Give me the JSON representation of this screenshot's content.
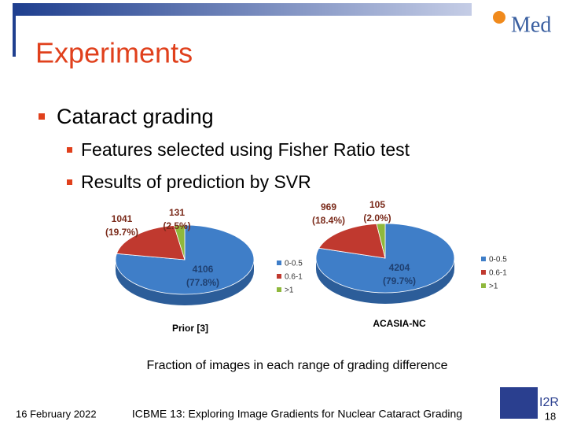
{
  "header": {
    "title": "Experiments",
    "logo": "Med"
  },
  "bullets": [
    {
      "text": "Cataract grading",
      "items": [
        "Features selected using Fisher Ratio test",
        "Results of prediction by SVR"
      ]
    }
  ],
  "chart_data": [
    {
      "type": "pie",
      "title": "Prior [3]",
      "categories": [
        "0-0.5",
        "0.6-1",
        ">1"
      ],
      "colors": [
        "#3f7ec8",
        "#c0392f",
        "#8fb83c"
      ],
      "values": [
        4106,
        1041,
        131
      ],
      "percent_labels": [
        "(77.8%)",
        "(19.7%)",
        "(2.5%)"
      ]
    },
    {
      "type": "pie",
      "title": "ACASIA-NC",
      "categories": [
        "0-0.5",
        "0.6-1",
        ">1"
      ],
      "colors": [
        "#3f7ec8",
        "#c0392f",
        "#8fb83c"
      ],
      "values": [
        4204,
        969,
        105
      ],
      "percent_labels": [
        "(79.7%)",
        "(18.4%)",
        "(2.0%)"
      ]
    }
  ],
  "caption": "Fraction of images in each range of grading difference",
  "footer": {
    "date": "16 February 2022",
    "center": "ICBME 13: Exploring Image Gradients for Nuclear Cataract Grading",
    "page": "18",
    "logo": "I2R"
  }
}
